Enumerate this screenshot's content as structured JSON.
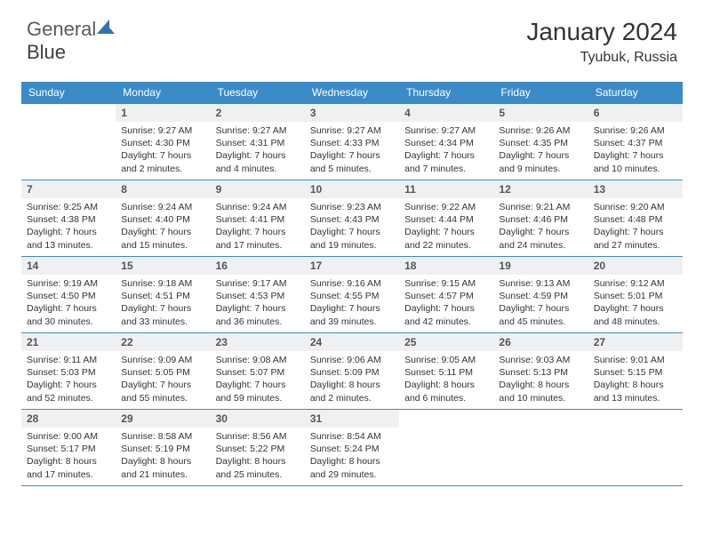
{
  "logo": {
    "text1": "General",
    "text2": "Blue"
  },
  "title": "January 2024",
  "location": "Tyubuk, Russia",
  "colors": {
    "header_bg": "#3b8bc8",
    "header_fg": "#ffffff",
    "daynum_bg": "#eef0f2",
    "border": "#3b8bc8",
    "logo_blue": "#2f74b5"
  },
  "weekdays": [
    "Sunday",
    "Monday",
    "Tuesday",
    "Wednesday",
    "Thursday",
    "Friday",
    "Saturday"
  ],
  "weeks": [
    [
      null,
      {
        "n": "1",
        "sr": "Sunrise: 9:27 AM",
        "ss": "Sunset: 4:30 PM",
        "d1": "Daylight: 7 hours",
        "d2": "and 2 minutes."
      },
      {
        "n": "2",
        "sr": "Sunrise: 9:27 AM",
        "ss": "Sunset: 4:31 PM",
        "d1": "Daylight: 7 hours",
        "d2": "and 4 minutes."
      },
      {
        "n": "3",
        "sr": "Sunrise: 9:27 AM",
        "ss": "Sunset: 4:33 PM",
        "d1": "Daylight: 7 hours",
        "d2": "and 5 minutes."
      },
      {
        "n": "4",
        "sr": "Sunrise: 9:27 AM",
        "ss": "Sunset: 4:34 PM",
        "d1": "Daylight: 7 hours",
        "d2": "and 7 minutes."
      },
      {
        "n": "5",
        "sr": "Sunrise: 9:26 AM",
        "ss": "Sunset: 4:35 PM",
        "d1": "Daylight: 7 hours",
        "d2": "and 9 minutes."
      },
      {
        "n": "6",
        "sr": "Sunrise: 9:26 AM",
        "ss": "Sunset: 4:37 PM",
        "d1": "Daylight: 7 hours",
        "d2": "and 10 minutes."
      }
    ],
    [
      {
        "n": "7",
        "sr": "Sunrise: 9:25 AM",
        "ss": "Sunset: 4:38 PM",
        "d1": "Daylight: 7 hours",
        "d2": "and 13 minutes."
      },
      {
        "n": "8",
        "sr": "Sunrise: 9:24 AM",
        "ss": "Sunset: 4:40 PM",
        "d1": "Daylight: 7 hours",
        "d2": "and 15 minutes."
      },
      {
        "n": "9",
        "sr": "Sunrise: 9:24 AM",
        "ss": "Sunset: 4:41 PM",
        "d1": "Daylight: 7 hours",
        "d2": "and 17 minutes."
      },
      {
        "n": "10",
        "sr": "Sunrise: 9:23 AM",
        "ss": "Sunset: 4:43 PM",
        "d1": "Daylight: 7 hours",
        "d2": "and 19 minutes."
      },
      {
        "n": "11",
        "sr": "Sunrise: 9:22 AM",
        "ss": "Sunset: 4:44 PM",
        "d1": "Daylight: 7 hours",
        "d2": "and 22 minutes."
      },
      {
        "n": "12",
        "sr": "Sunrise: 9:21 AM",
        "ss": "Sunset: 4:46 PM",
        "d1": "Daylight: 7 hours",
        "d2": "and 24 minutes."
      },
      {
        "n": "13",
        "sr": "Sunrise: 9:20 AM",
        "ss": "Sunset: 4:48 PM",
        "d1": "Daylight: 7 hours",
        "d2": "and 27 minutes."
      }
    ],
    [
      {
        "n": "14",
        "sr": "Sunrise: 9:19 AM",
        "ss": "Sunset: 4:50 PM",
        "d1": "Daylight: 7 hours",
        "d2": "and 30 minutes."
      },
      {
        "n": "15",
        "sr": "Sunrise: 9:18 AM",
        "ss": "Sunset: 4:51 PM",
        "d1": "Daylight: 7 hours",
        "d2": "and 33 minutes."
      },
      {
        "n": "16",
        "sr": "Sunrise: 9:17 AM",
        "ss": "Sunset: 4:53 PM",
        "d1": "Daylight: 7 hours",
        "d2": "and 36 minutes."
      },
      {
        "n": "17",
        "sr": "Sunrise: 9:16 AM",
        "ss": "Sunset: 4:55 PM",
        "d1": "Daylight: 7 hours",
        "d2": "and 39 minutes."
      },
      {
        "n": "18",
        "sr": "Sunrise: 9:15 AM",
        "ss": "Sunset: 4:57 PM",
        "d1": "Daylight: 7 hours",
        "d2": "and 42 minutes."
      },
      {
        "n": "19",
        "sr": "Sunrise: 9:13 AM",
        "ss": "Sunset: 4:59 PM",
        "d1": "Daylight: 7 hours",
        "d2": "and 45 minutes."
      },
      {
        "n": "20",
        "sr": "Sunrise: 9:12 AM",
        "ss": "Sunset: 5:01 PM",
        "d1": "Daylight: 7 hours",
        "d2": "and 48 minutes."
      }
    ],
    [
      {
        "n": "21",
        "sr": "Sunrise: 9:11 AM",
        "ss": "Sunset: 5:03 PM",
        "d1": "Daylight: 7 hours",
        "d2": "and 52 minutes."
      },
      {
        "n": "22",
        "sr": "Sunrise: 9:09 AM",
        "ss": "Sunset: 5:05 PM",
        "d1": "Daylight: 7 hours",
        "d2": "and 55 minutes."
      },
      {
        "n": "23",
        "sr": "Sunrise: 9:08 AM",
        "ss": "Sunset: 5:07 PM",
        "d1": "Daylight: 7 hours",
        "d2": "and 59 minutes."
      },
      {
        "n": "24",
        "sr": "Sunrise: 9:06 AM",
        "ss": "Sunset: 5:09 PM",
        "d1": "Daylight: 8 hours",
        "d2": "and 2 minutes."
      },
      {
        "n": "25",
        "sr": "Sunrise: 9:05 AM",
        "ss": "Sunset: 5:11 PM",
        "d1": "Daylight: 8 hours",
        "d2": "and 6 minutes."
      },
      {
        "n": "26",
        "sr": "Sunrise: 9:03 AM",
        "ss": "Sunset: 5:13 PM",
        "d1": "Daylight: 8 hours",
        "d2": "and 10 minutes."
      },
      {
        "n": "27",
        "sr": "Sunrise: 9:01 AM",
        "ss": "Sunset: 5:15 PM",
        "d1": "Daylight: 8 hours",
        "d2": "and 13 minutes."
      }
    ],
    [
      {
        "n": "28",
        "sr": "Sunrise: 9:00 AM",
        "ss": "Sunset: 5:17 PM",
        "d1": "Daylight: 8 hours",
        "d2": "and 17 minutes."
      },
      {
        "n": "29",
        "sr": "Sunrise: 8:58 AM",
        "ss": "Sunset: 5:19 PM",
        "d1": "Daylight: 8 hours",
        "d2": "and 21 minutes."
      },
      {
        "n": "30",
        "sr": "Sunrise: 8:56 AM",
        "ss": "Sunset: 5:22 PM",
        "d1": "Daylight: 8 hours",
        "d2": "and 25 minutes."
      },
      {
        "n": "31",
        "sr": "Sunrise: 8:54 AM",
        "ss": "Sunset: 5:24 PM",
        "d1": "Daylight: 8 hours",
        "d2": "and 29 minutes."
      },
      null,
      null,
      null
    ]
  ]
}
